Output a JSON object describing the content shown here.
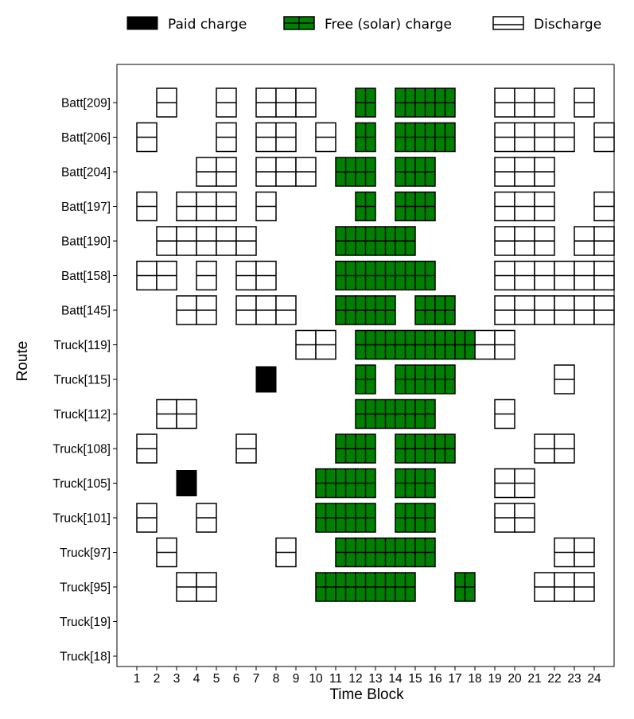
{
  "chart_data": {
    "type": "heatmap",
    "title": "",
    "xlabel": "Time Block",
    "ylabel": "Route",
    "x_ticks": [
      "1",
      "2",
      "3",
      "4",
      "5",
      "6",
      "7",
      "8",
      "9",
      "10",
      "11",
      "12",
      "13",
      "14",
      "15",
      "16",
      "17",
      "18",
      "19",
      "20",
      "21",
      "22",
      "23",
      "24"
    ],
    "routes": [
      "Batt[209]",
      "Batt[206]",
      "Batt[204]",
      "Batt[197]",
      "Batt[190]",
      "Batt[158]",
      "Batt[145]",
      "Truck[119]",
      "Truck[115]",
      "Truck[112]",
      "Truck[108]",
      "Truck[105]",
      "Truck[101]",
      "Truck[97]",
      "Truck[95]",
      "Truck[19]",
      "Truck[18]"
    ],
    "legend": {
      "position": "top",
      "entries": [
        {
          "key": "paid",
          "label": "Paid charge"
        },
        {
          "key": "solar",
          "label": "Free (solar) charge"
        },
        {
          "key": "discharge",
          "label": "Discharge"
        }
      ]
    },
    "colors": {
      "paid": "#000000",
      "solar": "#008000",
      "discharge": "#ffffff",
      "edge": "#000000"
    },
    "grid": false,
    "events": {
      "Batt[209]": {
        "discharge": [
          2,
          5,
          7,
          8,
          9,
          19,
          20,
          21,
          23
        ],
        "solar": [
          12,
          14,
          15,
          16
        ],
        "paid": []
      },
      "Batt[206]": {
        "discharge": [
          1,
          5,
          7,
          8,
          10,
          19,
          20,
          21,
          22,
          24
        ],
        "solar": [
          12,
          14,
          15,
          16
        ],
        "paid": []
      },
      "Batt[204]": {
        "discharge": [
          4,
          5,
          7,
          8,
          9,
          19,
          20,
          21
        ],
        "solar": [
          11,
          12,
          14,
          15
        ],
        "paid": []
      },
      "Batt[197]": {
        "discharge": [
          1,
          3,
          4,
          5,
          7,
          19,
          20,
          21,
          24
        ],
        "solar": [
          12,
          14,
          15
        ],
        "paid": []
      },
      "Batt[190]": {
        "discharge": [
          2,
          3,
          4,
          5,
          6,
          19,
          20,
          21,
          23,
          24
        ],
        "solar": [
          11,
          12,
          13,
          14
        ],
        "paid": []
      },
      "Batt[158]": {
        "discharge": [
          1,
          2,
          4,
          6,
          7,
          19,
          20,
          21,
          22,
          23,
          24
        ],
        "solar": [
          11,
          12,
          13,
          14,
          15
        ],
        "paid": []
      },
      "Batt[145]": {
        "discharge": [
          3,
          4,
          6,
          7,
          8,
          19,
          20,
          21,
          22,
          23,
          24
        ],
        "solar": [
          11,
          12,
          13,
          15,
          16
        ],
        "paid": []
      },
      "Truck[119]": {
        "discharge": [
          9,
          10,
          18,
          19
        ],
        "solar": [
          12,
          13,
          14,
          15,
          16,
          17
        ],
        "paid": []
      },
      "Truck[115]": {
        "discharge": [
          22
        ],
        "solar": [
          12,
          14,
          15,
          16
        ],
        "paid": [
          7
        ]
      },
      "Truck[112]": {
        "discharge": [
          2,
          3,
          19
        ],
        "solar": [
          12,
          13,
          14,
          15
        ],
        "paid": []
      },
      "Truck[108]": {
        "discharge": [
          1,
          6,
          21,
          22
        ],
        "solar": [
          11,
          12,
          14,
          15,
          16
        ],
        "paid": []
      },
      "Truck[105]": {
        "discharge": [
          19,
          20
        ],
        "solar": [
          10,
          11,
          12,
          14,
          15
        ],
        "paid": [
          3
        ]
      },
      "Truck[101]": {
        "discharge": [
          1,
          4,
          19,
          20
        ],
        "solar": [
          10,
          11,
          12,
          14,
          15
        ],
        "paid": []
      },
      "Truck[97]": {
        "discharge": [
          2,
          8,
          22,
          23
        ],
        "solar": [
          11,
          12,
          13,
          14,
          15
        ],
        "paid": []
      },
      "Truck[95]": {
        "discharge": [
          3,
          4,
          21,
          22,
          23
        ],
        "solar": [
          10,
          11,
          12,
          13,
          14,
          17
        ],
        "paid": []
      },
      "Truck[19]": {
        "discharge": [],
        "solar": [],
        "paid": []
      },
      "Truck[18]": {
        "discharge": [],
        "solar": [],
        "paid": []
      }
    }
  }
}
